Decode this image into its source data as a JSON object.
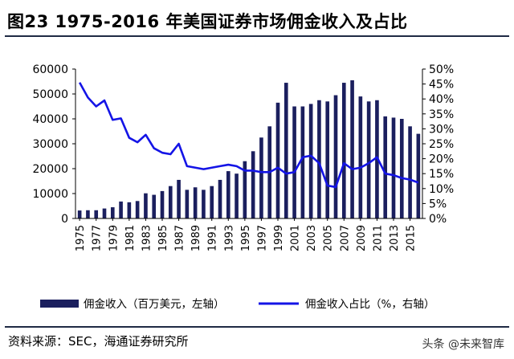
{
  "title": "图23 1975-2016 年美国证券市场佣金收入及占比",
  "source": "资料来源：SEC，海通证券研究所",
  "watermark": "头条 @未来智库",
  "colors": {
    "bar": "#1b1f5e",
    "line": "#1414e6",
    "axis": "#000000"
  },
  "chart_data": {
    "type": "bar",
    "categories": [
      "1975",
      "1976",
      "1977",
      "1978",
      "1979",
      "1980",
      "1981",
      "1982",
      "1983",
      "1984",
      "1985",
      "1986",
      "1987",
      "1988",
      "1989",
      "1990",
      "1991",
      "1992",
      "1993",
      "1994",
      "1995",
      "1996",
      "1997",
      "1998",
      "1999",
      "2000",
      "2001",
      "2002",
      "2003",
      "2004",
      "2005",
      "2006",
      "2007",
      "2008",
      "2009",
      "2010",
      "2011",
      "2012",
      "2013",
      "2014",
      "2015",
      "2016"
    ],
    "x_tick_labels": [
      "1975",
      "1977",
      "1979",
      "1981",
      "1983",
      "1985",
      "1987",
      "1989",
      "1991",
      "1993",
      "1995",
      "1997",
      "1999",
      "2001",
      "2003",
      "2005",
      "2007",
      "2009",
      "2011",
      "2013",
      "2015"
    ],
    "series": [
      {
        "name": "佣金收入（百万美元，左轴）",
        "type": "bar",
        "axis": "left",
        "values": [
          3200,
          3300,
          3300,
          4000,
          4500,
          6800,
          6500,
          7000,
          10100,
          9500,
          11000,
          13000,
          15500,
          11500,
          12500,
          11500,
          13000,
          15500,
          19000,
          18000,
          23000,
          27000,
          32500,
          37000,
          46500,
          54500,
          45000,
          45000,
          46000,
          47500,
          47000,
          49500,
          54500,
          55500,
          49000,
          47000,
          47500,
          41000,
          40500,
          40000,
          37000,
          34000
        ]
      },
      {
        "name": "佣金收入占比（%，右轴）",
        "type": "line",
        "axis": "right",
        "values": [
          45.5,
          40.5,
          37.5,
          39.5,
          33,
          33.5,
          27,
          25.5,
          28,
          23.5,
          22,
          21.5,
          25,
          17.5,
          17,
          16.5,
          17,
          17.5,
          18,
          17.5,
          16,
          16,
          15.5,
          15.5,
          17,
          15,
          15.5,
          20.5,
          21,
          18.5,
          11,
          10.5,
          18.5,
          16.5,
          17,
          18.5,
          20.5,
          15,
          14.5,
          13.5,
          13,
          12
        ]
      }
    ],
    "y_left": {
      "min": 0,
      "max": 60000,
      "ticks": [
        "0",
        "10000",
        "20000",
        "30000",
        "40000",
        "50000",
        "60000"
      ]
    },
    "y_right": {
      "min": 0,
      "max": 50,
      "ticks": [
        "0%",
        "5%",
        "10%",
        "15%",
        "20%",
        "25%",
        "30%",
        "35%",
        "40%",
        "45%",
        "50%"
      ]
    },
    "legend": [
      "佣金收入（百万美元，左轴）",
      "佣金收入占比（%，右轴）"
    ],
    "legend_position": "bottom",
    "grid": false
  }
}
